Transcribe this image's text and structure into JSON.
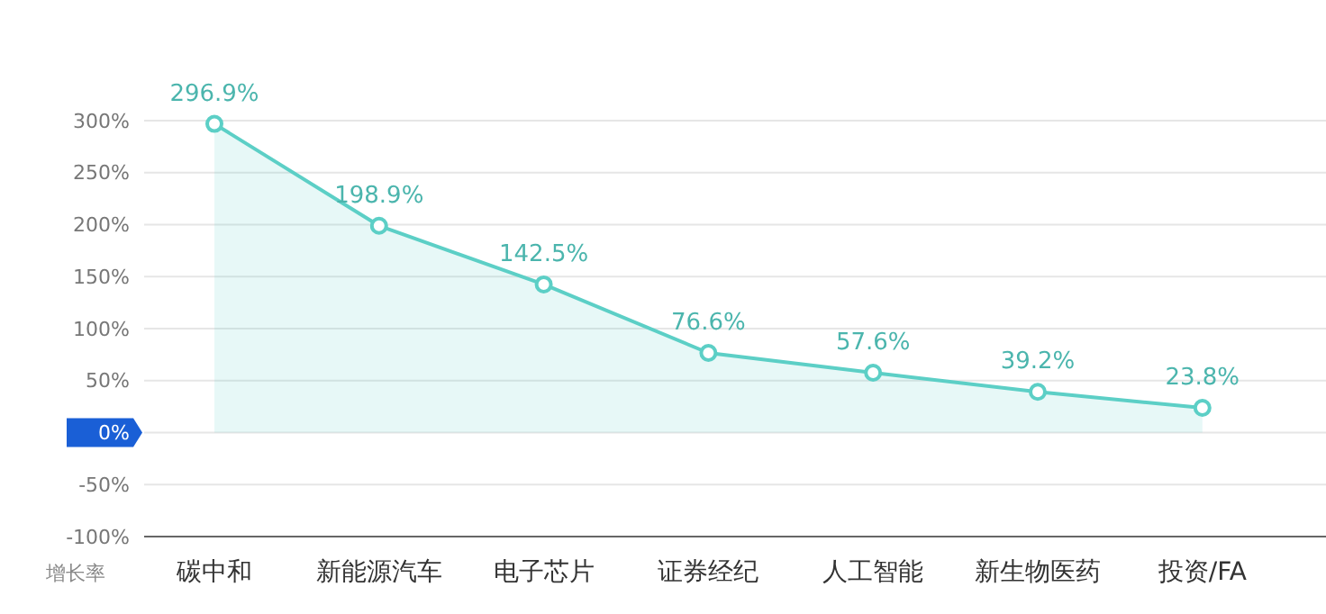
{
  "chart_data": {
    "type": "area",
    "xlabel": "增长率",
    "categories": [
      "碳中和",
      "新能源汽车",
      "电子芯片",
      "证券经纪",
      "人工智能",
      "新生物医药",
      "投资/FA"
    ],
    "values": [
      296.9,
      198.9,
      142.5,
      76.6,
      57.6,
      39.2,
      23.8
    ],
    "color": "#5ccfc6",
    "ylim": [
      -100,
      300
    ],
    "yticks": [
      {
        "value": -100,
        "label": "-100%"
      },
      {
        "value": -50,
        "label": "-50%"
      },
      {
        "value": 0,
        "label": "0%"
      },
      {
        "value": 50,
        "label": "50%"
      },
      {
        "value": 100,
        "label": "100%"
      },
      {
        "value": 150,
        "label": "150%"
      },
      {
        "value": 200,
        "label": "200%"
      },
      {
        "value": 250,
        "label": "250%"
      },
      {
        "value": 300,
        "label": "300%"
      }
    ],
    "value_labels": [
      "296.9%",
      "198.9%",
      "142.5%",
      "76.6%",
      "57.6%",
      "39.2%",
      "23.8%"
    ],
    "grid": "y",
    "marker": "circle",
    "line_style": "solid"
  }
}
